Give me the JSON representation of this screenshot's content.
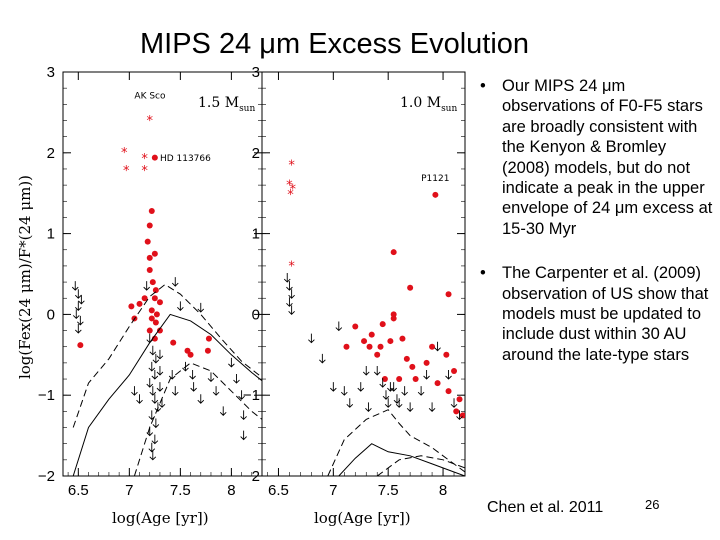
{
  "slide": {
    "title": "MIPS 24 μm Excess Evolution",
    "bullets": [
      "Our MIPS 24 μm observations of F0-F5 stars are broadly consistent with the Kenyon & Bromley (2008) models, but do not indicate a peak in the upper envelope of 24 μm excess at 15-30 Myr",
      "The Carpenter et al. (2009) observation of US show that models must be updated to include dust within 30 AU around the late-type stars"
    ],
    "bullet_symbol": "•",
    "citation": "Chen et al. 2011",
    "page_number": "26"
  },
  "colors": {
    "detection": "#e0101a",
    "literature": "#e0101a",
    "axes": "#000000",
    "curve": "#000000"
  },
  "chart_data": [
    {
      "type": "scatter",
      "title": "1.5 Msun",
      "xlabel": "log(Age [yr])",
      "ylabel": "log(Fex(24 μm)/F*(24 μm))",
      "xlim": [
        6.35,
        8.3
      ],
      "ylim": [
        -2,
        3
      ],
      "xticks": [
        "6.5",
        "7",
        "7.5",
        "8"
      ],
      "yticks": [
        "3",
        "2",
        "1",
        "0",
        "−1",
        "−2"
      ],
      "legend": "none",
      "grid": false,
      "annotations": [
        {
          "text": "AK Sco",
          "x": 7.05,
          "y": 2.67
        },
        {
          "text": "HD 113766",
          "x": 7.3,
          "y": 1.9
        }
      ],
      "series": [
        {
          "name": "",
          "marker": "filled-circle",
          "points": [
            [
              7.25,
              1.94
            ],
            [
              7.22,
              1.28
            ],
            [
              7.2,
              1.1
            ],
            [
              7.18,
              0.9
            ],
            [
              7.2,
              0.7
            ],
            [
              7.25,
              0.75
            ],
            [
              7.2,
              0.55
            ],
            [
              7.23,
              0.4
            ],
            [
              7.26,
              0.3
            ],
            [
              7.15,
              0.2
            ],
            [
              7.25,
              0.2
            ],
            [
              7.3,
              0.15
            ],
            [
              7.22,
              0.05
            ],
            [
              7.27,
              0.0
            ],
            [
              7.22,
              -0.05
            ],
            [
              7.26,
              -0.1
            ],
            [
              7.2,
              -0.2
            ],
            [
              7.3,
              -0.2
            ],
            [
              7.25,
              -0.3
            ],
            [
              7.1,
              0.13
            ],
            [
              7.02,
              0.1
            ],
            [
              7.05,
              -0.05
            ],
            [
              7.43,
              -0.35
            ],
            [
              7.57,
              -0.45
            ],
            [
              7.6,
              -0.5
            ],
            [
              7.78,
              -0.3
            ],
            [
              7.77,
              -0.45
            ],
            [
              6.52,
              -0.38
            ]
          ]
        },
        {
          "name": "",
          "marker": "asterisk",
          "points": [
            [
              7.2,
              2.42
            ],
            [
              6.95,
              2.02
            ],
            [
              7.15,
              1.95
            ],
            [
              7.15,
              1.8
            ],
            [
              6.97,
              1.8
            ]
          ]
        },
        {
          "name": "",
          "marker": "upper-limit",
          "points": [
            [
              6.47,
              0.35
            ],
            [
              6.5,
              0.25
            ],
            [
              6.53,
              0.18
            ],
            [
              6.5,
              0.1
            ],
            [
              6.48,
              0.0
            ],
            [
              6.52,
              -0.08
            ],
            [
              6.5,
              -0.18
            ],
            [
              7.05,
              -0.95
            ],
            [
              7.1,
              -1.05
            ],
            [
              7.17,
              0.35
            ],
            [
              7.2,
              -0.3
            ],
            [
              7.23,
              -0.45
            ],
            [
              7.26,
              -0.55
            ],
            [
              7.22,
              -0.65
            ],
            [
              7.25,
              -0.75
            ],
            [
              7.2,
              -0.85
            ],
            [
              7.23,
              -0.95
            ],
            [
              7.25,
              -1.05
            ],
            [
              7.28,
              -1.15
            ],
            [
              7.22,
              -1.25
            ],
            [
              7.26,
              -1.35
            ],
            [
              7.2,
              -1.45
            ],
            [
              7.25,
              -1.55
            ],
            [
              7.22,
              -1.65
            ],
            [
              7.23,
              -1.75
            ],
            [
              7.3,
              -0.5
            ],
            [
              7.3,
              -0.7
            ],
            [
              7.3,
              -0.9
            ],
            [
              7.32,
              -1.1
            ],
            [
              7.42,
              -0.75
            ],
            [
              7.45,
              -0.95
            ],
            [
              7.45,
              0.4
            ],
            [
              7.5,
              0.1
            ],
            [
              7.55,
              -0.65
            ],
            [
              7.62,
              -0.75
            ],
            [
              7.63,
              -0.9
            ],
            [
              7.7,
              -1.05
            ],
            [
              7.7,
              0.08
            ],
            [
              7.8,
              -0.78
            ],
            [
              7.85,
              -0.95
            ],
            [
              7.92,
              -1.2
            ],
            [
              8.0,
              -0.6
            ],
            [
              8.05,
              -0.8
            ],
            [
              8.1,
              -1.0
            ],
            [
              8.12,
              -1.25
            ],
            [
              8.12,
              -1.5
            ]
          ]
        },
        {
          "name": "",
          "marker": "line",
          "x": [
            6.45,
            6.6,
            6.8,
            7.0,
            7.2,
            7.4,
            7.6,
            7.8,
            8.0,
            8.2,
            8.3
          ],
          "y": [
            -2.0,
            -1.4,
            -1.05,
            -0.75,
            -0.35,
            0.0,
            -0.08,
            -0.25,
            -0.5,
            -0.72,
            -0.82
          ]
        },
        {
          "name": "",
          "marker": "dashed-line",
          "x": [
            6.45,
            6.6,
            6.8,
            7.0,
            7.2,
            7.35,
            7.5,
            7.7,
            7.9,
            8.1,
            8.3
          ],
          "y": [
            -1.4,
            -0.85,
            -0.55,
            -0.15,
            0.22,
            0.37,
            0.25,
            0.0,
            -0.3,
            -0.58,
            -0.78
          ]
        },
        {
          "name": "",
          "marker": "dashed-line",
          "x": [
            7.05,
            7.2,
            7.4,
            7.6,
            7.8,
            8.0,
            8.2,
            8.3
          ],
          "y": [
            -2.0,
            -1.4,
            -0.8,
            -0.6,
            -0.7,
            -0.95,
            -1.2,
            -1.3
          ]
        }
      ]
    },
    {
      "type": "scatter",
      "title": "1.0 Msun",
      "xlabel": "log(Age [yr])",
      "ylabel": "",
      "xlim": [
        6.35,
        8.2
      ],
      "ylim": [
        -2,
        3
      ],
      "xticks": [
        "6.5",
        "7",
        "7.5",
        "8"
      ],
      "yticks": [
        "3",
        "2",
        "1",
        "0",
        "−1",
        "−2"
      ],
      "legend": "none",
      "grid": false,
      "annotations": [
        {
          "text": "P1121",
          "x": 7.8,
          "y": 1.65
        }
      ],
      "series": [
        {
          "name": "",
          "marker": "filled-circle",
          "points": [
            [
              7.93,
              1.48
            ],
            [
              7.55,
              0.77
            ],
            [
              7.55,
              0.0
            ],
            [
              7.55,
              -0.05
            ],
            [
              7.7,
              0.33
            ],
            [
              8.05,
              0.25
            ],
            [
              7.45,
              -0.12
            ],
            [
              7.35,
              -0.25
            ],
            [
              7.28,
              -0.33
            ],
            [
              7.33,
              -0.4
            ],
            [
              7.43,
              -0.4
            ],
            [
              7.52,
              -0.33
            ],
            [
              7.63,
              -0.3
            ],
            [
              7.9,
              -0.4
            ],
            [
              7.2,
              -0.15
            ],
            [
              7.12,
              -0.4
            ],
            [
              7.4,
              -0.5
            ],
            [
              7.67,
              -0.55
            ],
            [
              7.72,
              -0.65
            ],
            [
              7.85,
              -0.6
            ],
            [
              7.47,
              -0.8
            ],
            [
              7.6,
              -0.8
            ],
            [
              7.75,
              -0.8
            ],
            [
              7.95,
              -0.85
            ],
            [
              8.03,
              -0.5
            ],
            [
              8.1,
              -0.7
            ],
            [
              8.05,
              -0.95
            ],
            [
              8.15,
              -1.05
            ],
            [
              8.12,
              -1.2
            ],
            [
              8.18,
              -1.25
            ]
          ]
        },
        {
          "name": "",
          "marker": "asterisk",
          "points": [
            [
              6.62,
              1.87
            ],
            [
              6.6,
              1.62
            ],
            [
              6.63,
              1.57
            ],
            [
              6.61,
              1.5
            ],
            [
              6.62,
              0.62
            ]
          ]
        },
        {
          "name": "",
          "marker": "upper-limit",
          "points": [
            [
              6.58,
              0.45
            ],
            [
              6.6,
              0.35
            ],
            [
              6.62,
              0.25
            ],
            [
              6.6,
              0.15
            ],
            [
              6.62,
              0.05
            ],
            [
              6.8,
              -0.3
            ],
            [
              6.9,
              -0.55
            ],
            [
              7.0,
              -0.9
            ],
            [
              7.05,
              -0.15
            ],
            [
              7.1,
              -0.95
            ],
            [
              7.15,
              -1.1
            ],
            [
              7.25,
              -0.9
            ],
            [
              7.3,
              -0.7
            ],
            [
              7.32,
              -1.15
            ],
            [
              7.4,
              -0.7
            ],
            [
              7.45,
              -0.85
            ],
            [
              7.48,
              -1.0
            ],
            [
              7.5,
              -1.1
            ],
            [
              7.52,
              -0.9
            ],
            [
              7.55,
              -0.9
            ],
            [
              7.58,
              -1.05
            ],
            [
              7.6,
              -1.1
            ],
            [
              7.65,
              -0.95
            ],
            [
              7.7,
              -1.15
            ],
            [
              7.8,
              -0.95
            ],
            [
              7.85,
              -0.75
            ],
            [
              7.9,
              -1.15
            ],
            [
              7.95,
              -0.4
            ],
            [
              8.05,
              -0.75
            ],
            [
              8.1,
              -1.1
            ],
            [
              8.15,
              -1.25
            ]
          ]
        },
        {
          "name": "",
          "marker": "line",
          "x": [
            7.05,
            7.2,
            7.35,
            7.5,
            7.7,
            7.9,
            8.1,
            8.2
          ],
          "y": [
            -2.0,
            -1.78,
            -1.6,
            -1.7,
            -1.75,
            -1.85,
            -1.95,
            -2.0
          ]
        },
        {
          "name": "",
          "marker": "dashed-line",
          "x": [
            6.95,
            7.1,
            7.3,
            7.5,
            7.6,
            7.7,
            7.9,
            8.1,
            8.2
          ],
          "y": [
            -2.0,
            -1.55,
            -1.3,
            -1.18,
            -1.35,
            -1.5,
            -1.65,
            -1.85,
            -1.95
          ]
        },
        {
          "name": "",
          "marker": "dashed-line",
          "x": [
            7.4,
            7.6,
            7.8,
            8.0,
            8.2
          ],
          "y": [
            -2.0,
            -1.8,
            -1.75,
            -1.8,
            -1.9
          ]
        }
      ]
    }
  ]
}
